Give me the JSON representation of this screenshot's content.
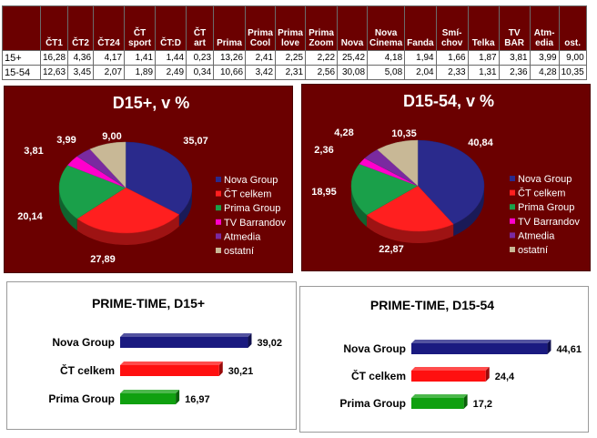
{
  "table": {
    "columns": [
      "ČT1",
      "ČT2",
      "ČT24",
      "ČT sport",
      "ČT:D",
      "ČT art",
      "Prima",
      "Prima Cool",
      "Prima love",
      "Prima Zoom",
      "Nova",
      "Nova Cinema",
      "Fanda",
      "Smí-chov",
      "Telka",
      "TV BAR",
      "Atm-edia",
      "ost."
    ],
    "column_display": [
      "ČT1",
      "ČT2",
      "ČT24",
      "ČT\nsport",
      "ČT:D",
      "ČT\nart",
      "Prima",
      "Prima\nCool",
      "Prima\nlove",
      "Prima\nZoom",
      "Nova",
      "Nova\nCinema",
      "Fanda",
      "Smí-\nchov",
      "Telka",
      "TV\nBAR",
      "Atm-\nedia",
      "ost."
    ],
    "rows": [
      {
        "label": "15+",
        "values": [
          "16,28",
          "4,36",
          "4,17",
          "1,41",
          "1,44",
          "0,23",
          "13,26",
          "2,41",
          "2,25",
          "2,22",
          "25,42",
          "4,18",
          "1,94",
          "1,66",
          "1,87",
          "3,81",
          "3,99",
          "9,00"
        ]
      },
      {
        "label": "15-54",
        "values": [
          "12,63",
          "3,45",
          "2,07",
          "1,89",
          "2,49",
          "0,34",
          "10,66",
          "3,42",
          "2,31",
          "2,56",
          "30,08",
          "5,08",
          "2,04",
          "2,33",
          "1,31",
          "2,36",
          "4,28",
          "10,35"
        ]
      }
    ]
  },
  "chart_data": [
    {
      "type": "pie",
      "title": "D15+, v %",
      "labels": [
        "Nova Group",
        "ČT celkem",
        "Prima Group",
        "TV Barrandov",
        "Atmedia",
        "ostatní"
      ],
      "values": [
        35.07,
        27.89,
        20.14,
        3.81,
        3.99,
        9.0
      ],
      "value_labels": [
        "35,07",
        "27,89",
        "20,14",
        "3,81",
        "3,99",
        "9,00"
      ],
      "colors": [
        "#2a2a8c",
        "#ff1f1f",
        "#1aa04a",
        "#ff00cc",
        "#7a2aa0",
        "#c8b896"
      ],
      "legend": "right"
    },
    {
      "type": "pie",
      "title": "D15-54, v %",
      "labels": [
        "Nova Group",
        "ČT celkem",
        "Prima Group",
        "TV Barrandov",
        "Atmedia",
        "ostatní"
      ],
      "values": [
        40.84,
        22.87,
        18.95,
        2.36,
        4.28,
        10.35
      ],
      "value_labels": [
        "40,84",
        "22,87",
        "18,95",
        "2,36",
        "4,28",
        "10,35"
      ],
      "colors": [
        "#2a2a8c",
        "#ff1f1f",
        "#1aa04a",
        "#ff00cc",
        "#7a2aa0",
        "#c8b896"
      ],
      "legend": "right"
    },
    {
      "type": "bar",
      "title": "PRIME-TIME, D15+",
      "categories": [
        "Nova Group",
        "ČT celkem",
        "Prima Group"
      ],
      "values": [
        39.02,
        30.21,
        16.97
      ],
      "value_labels": [
        "39,02",
        "30,21",
        "16,97"
      ],
      "colors": [
        "#1a1a80",
        "#ff1010",
        "#10a010"
      ]
    },
    {
      "type": "bar",
      "title": "PRIME-TIME, D15-54",
      "categories": [
        "Nova Group",
        "ČT celkem",
        "Prima Group"
      ],
      "values": [
        44.61,
        24.4,
        17.2
      ],
      "value_labels": [
        "44,61",
        "24,4",
        "17,2"
      ],
      "colors": [
        "#1a1a80",
        "#ff1010",
        "#10a010"
      ]
    }
  ]
}
